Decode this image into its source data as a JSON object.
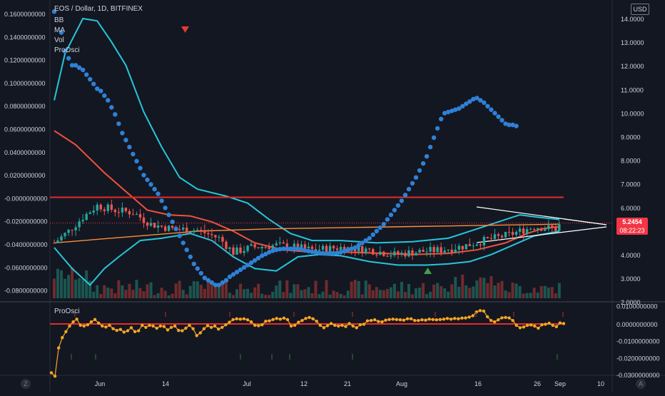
{
  "header": {
    "symbol_title": "EOS / Dollar, 1D, BITFINEX",
    "currency_button": "USD"
  },
  "legend": [
    "BB",
    "MA",
    "Vol",
    "ProOsci"
  ],
  "left_axis": {
    "labels": [
      "0.1600000000",
      "0.1400000000",
      "0.1200000000",
      "0.1000000000",
      "0.0800000000",
      "0.0600000000",
      "0.0400000000",
      "0.0200000000",
      "-0.0000000000",
      "-0.0200000000",
      "-0.0400000000",
      "-0.0600000000",
      "-0.0800000000"
    ]
  },
  "right_axis": {
    "labels": [
      "14.0000",
      "13.0000",
      "12.0000",
      "11.0000",
      "10.0000",
      "9.0000",
      "8.0000",
      "7.0000",
      "6.0000",
      "5.0000",
      "4.0000",
      "3.0000",
      "2.0000"
    ],
    "last_price": "5.2454",
    "countdown": "08:22:23",
    "last_price_color": "#f23645"
  },
  "oscillator": {
    "label": "ProOsci",
    "axis_labels": [
      "0.0100000000",
      "0.0000000000",
      "-0.0100000000",
      "-0.0200000000",
      "-0.0300000000"
    ],
    "values": [
      -0.0285,
      -0.0305,
      -0.014,
      -0.008,
      -0.0045,
      -0.0012,
      0.0012,
      0.0028,
      -0.0008,
      -0.0012,
      -0.0005,
      0.0012,
      0.0026,
      0.0005,
      -0.0012,
      -0.0018,
      -0.0008,
      -0.0028,
      -0.0038,
      -0.0032,
      -0.0048,
      -0.004,
      -0.0022,
      -0.0045,
      -0.004,
      -0.0008,
      -0.002,
      -0.0008,
      -0.0012,
      -0.0025,
      -0.0012,
      -0.0015,
      -0.0035,
      -0.002,
      -0.0012,
      -0.0038,
      -0.004,
      -0.0025,
      -0.0008,
      -0.0028,
      -0.0068,
      -0.0052,
      -0.0028,
      -0.001,
      -0.002,
      -0.0012,
      -0.003,
      -0.002,
      -0.0005,
      0.001,
      0.0025,
      0.003,
      0.0028,
      0.003,
      0.0024,
      0.0012,
      -0.0008,
      -0.001,
      -0.0005,
      0.0016,
      0.0018,
      0.0026,
      0.0032,
      0.0028,
      0.0034,
      0.0025,
      -0.0012,
      -0.0008,
      0.001,
      0.002,
      0.0032,
      0.0038,
      0.003,
      0.0016,
      -0.0008,
      -0.0022,
      -0.001,
      0.0002,
      -0.0008,
      -0.0012,
      -0.0008,
      -0.0015,
      0.0002,
      -0.0012,
      -0.0022,
      -0.0005,
      -0.0002,
      0.0018,
      0.002,
      0.0024,
      0.0014,
      0.0012,
      0.0022,
      0.0026,
      0.0028,
      0.0026,
      0.0024,
      0.0022,
      0.003,
      0.003,
      0.002,
      0.002,
      0.0024,
      0.0022,
      0.0028,
      0.0026,
      0.0024,
      0.0026,
      0.0028,
      0.0032,
      0.0028,
      0.0032,
      0.003,
      0.0034,
      0.0035,
      0.004,
      0.0048,
      0.007,
      0.0078,
      0.0075,
      0.0042,
      0.002,
      0.0012,
      0.0024,
      0.0036,
      0.0038,
      0.0035,
      0.002,
      -0.0008,
      -0.0022,
      -0.0018,
      -0.0008,
      -0.0006,
      -0.0012,
      -0.0025,
      -0.0005,
      -0.0002,
      0.0004,
      -0.0008,
      -0.0016,
      0.0006,
      0.0002
    ]
  },
  "time_axis": {
    "labels": [
      "Jun",
      "14",
      "Jul",
      "12",
      "21",
      "Aug",
      "16",
      "26",
      "Sep",
      "10"
    ],
    "left_icon": "Z",
    "right_icon": "A"
  },
  "colors": {
    "background": "#131722",
    "candle_up": "#26a69a",
    "candle_down": "#ef5350",
    "bb_band": "#26c6da",
    "ma_line": "#f0523c",
    "ma_long": "#ff8c3a",
    "sar_dots": "#2f81d6",
    "hline": "#e52b2b",
    "osc_line": "#f5a623",
    "osc_zero": "#e52b2b"
  },
  "icons": {
    "sell_marker": "down-triangle-icon",
    "buy_marker": "up-triangle-icon"
  }
}
